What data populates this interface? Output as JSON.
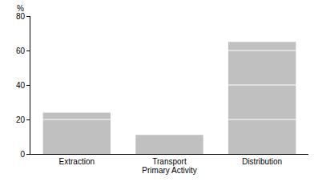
{
  "chart_data": {
    "type": "bar",
    "x_label": "Primary Activity",
    "y_label": "%",
    "categories": [
      "Extraction",
      "Transport",
      "Distribution"
    ],
    "values": [
      24,
      11,
      65
    ],
    "color": "#c0c0c0",
    "ylim": [
      0,
      80
    ],
    "yticks": [
      0,
      20,
      40,
      60,
      80
    ],
    "grid": true
  }
}
